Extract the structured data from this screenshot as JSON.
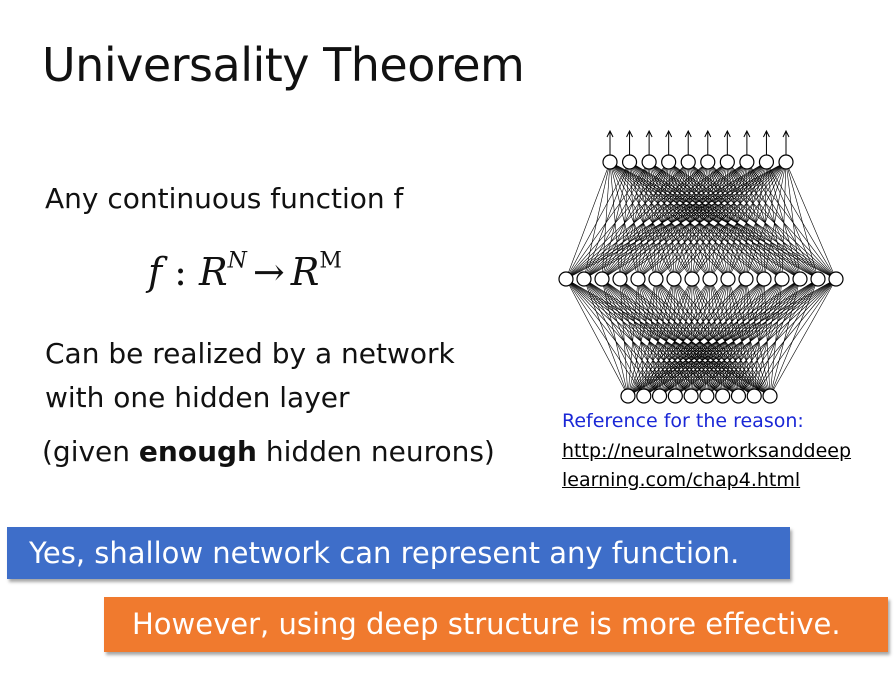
{
  "slide": {
    "title": "Universality Theorem",
    "line1": "Any continuous function f",
    "formula": {
      "f": "f",
      "colon": " : ",
      "domain": "R",
      "domain_exp": "N",
      "arrow": "→",
      "codomain": "R",
      "codomain_exp": "M"
    },
    "line2": "Can be realized by a network with one hidden layer",
    "line3_prefix": "(given ",
    "line3_bold": "enough",
    "line3_suffix": " hidden neurons)",
    "reference_label": "Reference for the reason:",
    "reference_link": "http://neuralnetworksanddeeplearning.com/chap4.html",
    "box_blue": "Yes, shallow network can represent any function.",
    "box_orange": "However, using deep structure is more effective."
  },
  "colors": {
    "blue_box": "#3e6ec9",
    "orange_box": "#f07a2e",
    "reference_text": "#1a27d6"
  }
}
